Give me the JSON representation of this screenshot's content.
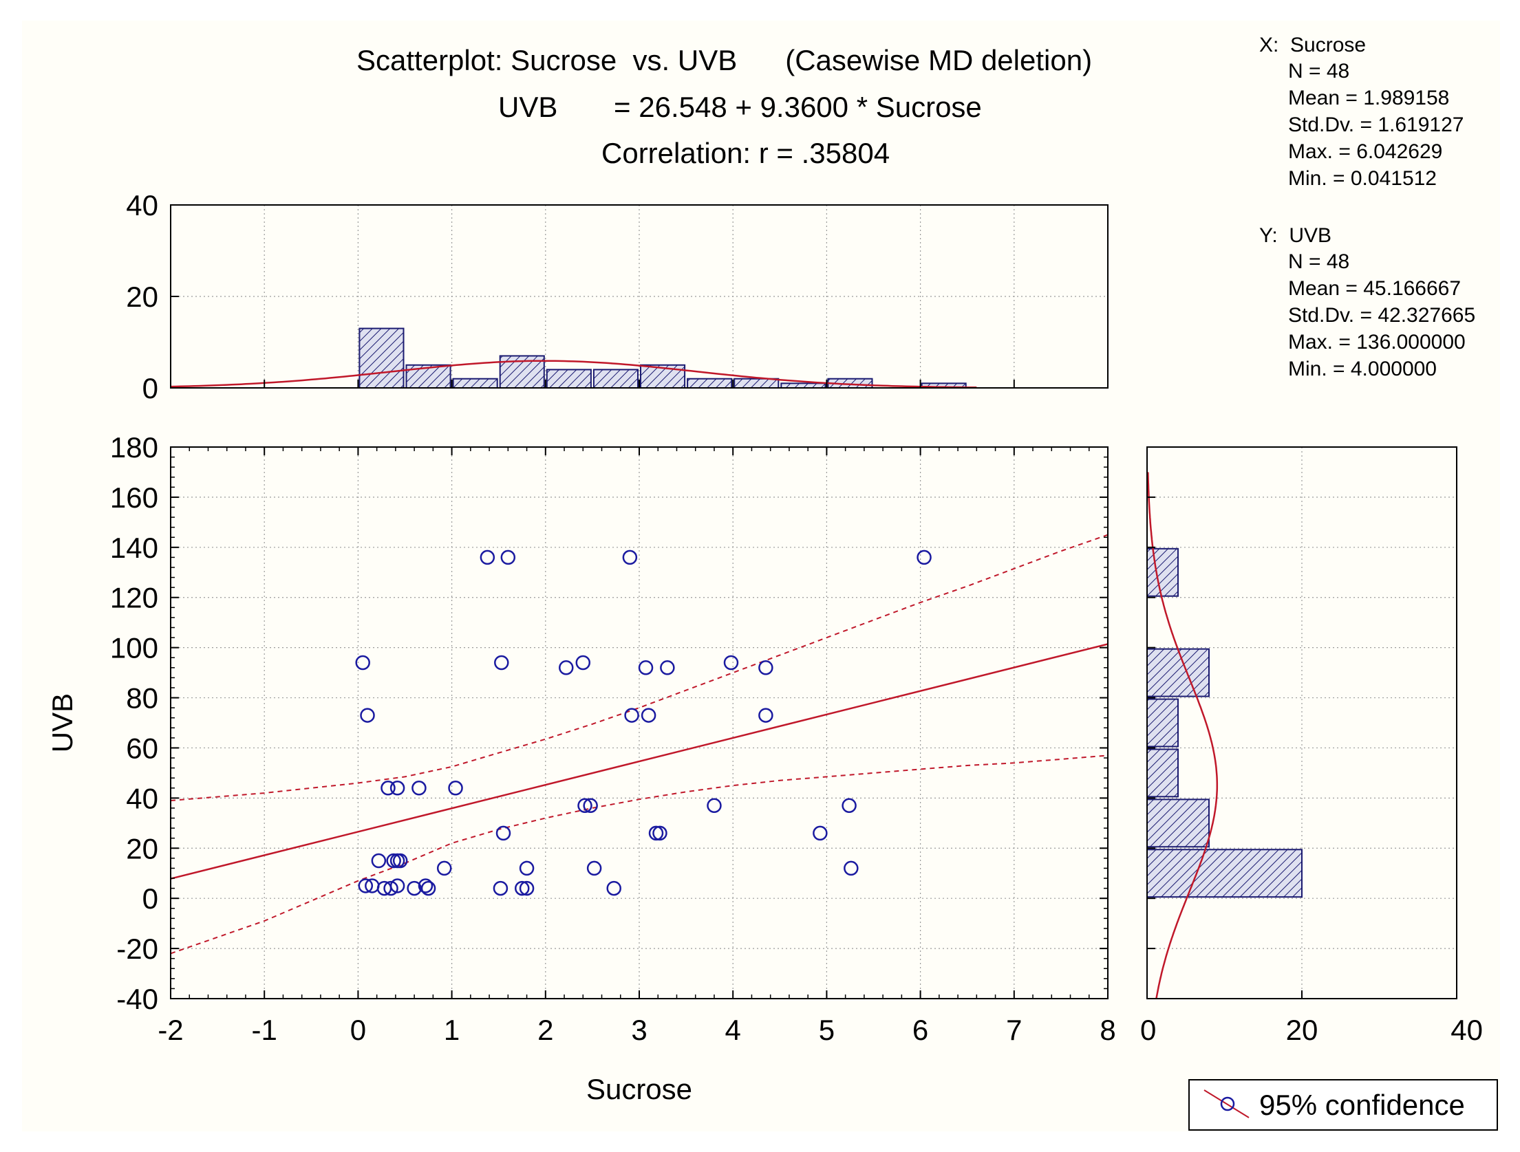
{
  "chart_data": {
    "type": "scatter",
    "title_lines": [
      "Scatterplot: Sucrose  vs. UVB      (Casewise MD deletion)",
      "UVB       = 26.548 + 9.3600 * Sucrose",
      "Correlation: r = .35804"
    ],
    "xlabel": "Sucrose",
    "ylabel": "UVB",
    "xlim": [
      -2,
      8
    ],
    "ylim": [
      -40,
      180
    ],
    "xticks": [
      "-2",
      "-1",
      "0",
      "1",
      "2",
      "3",
      "4",
      "5",
      "6",
      "7",
      "8"
    ],
    "yticks": [
      "-40",
      "-20",
      "0",
      "20",
      "40",
      "60",
      "80",
      "100",
      "120",
      "140",
      "160",
      "180"
    ],
    "regression": {
      "intercept": 26.548,
      "slope": 9.36
    },
    "confidence_band": {
      "x": [
        -2,
        -1,
        0,
        0.5,
        1,
        1.5,
        2,
        2.5,
        3,
        3.5,
        4,
        4.5,
        5,
        5.5,
        6,
        6.5,
        7,
        7.5,
        8
      ],
      "upper": [
        39,
        42,
        46,
        48.5,
        52.5,
        58,
        63.5,
        69.5,
        76,
        83,
        90,
        97,
        104,
        111,
        118,
        124.5,
        131.5,
        138.5,
        145
      ],
      "lower": [
        -22,
        -9,
        7,
        14,
        22,
        27.5,
        32,
        36,
        39.5,
        42.5,
        45,
        47,
        48.5,
        50,
        51.5,
        53,
        54,
        55.5,
        57
      ]
    },
    "points": [
      [
        1.38,
        136
      ],
      [
        1.6,
        136
      ],
      [
        2.9,
        136
      ],
      [
        6.04,
        136
      ],
      [
        0.05,
        94
      ],
      [
        1.53,
        94
      ],
      [
        2.4,
        94
      ],
      [
        3.98,
        94
      ],
      [
        2.22,
        92
      ],
      [
        3.07,
        92
      ],
      [
        3.3,
        92
      ],
      [
        4.35,
        92
      ],
      [
        0.1,
        73
      ],
      [
        2.92,
        73
      ],
      [
        3.1,
        73
      ],
      [
        4.35,
        73
      ],
      [
        0.32,
        44
      ],
      [
        0.42,
        44
      ],
      [
        0.65,
        44
      ],
      [
        1.04,
        44
      ],
      [
        2.42,
        37
      ],
      [
        2.48,
        37
      ],
      [
        3.8,
        37
      ],
      [
        5.24,
        37
      ],
      [
        1.55,
        26
      ],
      [
        3.18,
        26
      ],
      [
        3.22,
        26
      ],
      [
        4.93,
        26
      ],
      [
        0.22,
        15
      ],
      [
        0.38,
        15
      ],
      [
        0.42,
        15
      ],
      [
        0.45,
        15
      ],
      [
        0.92,
        12
      ],
      [
        1.8,
        12
      ],
      [
        2.52,
        12
      ],
      [
        5.26,
        12
      ],
      [
        0.08,
        5
      ],
      [
        0.15,
        5
      ],
      [
        0.42,
        5
      ],
      [
        0.72,
        5
      ],
      [
        0.28,
        4
      ],
      [
        0.35,
        4
      ],
      [
        0.6,
        4
      ],
      [
        0.75,
        4
      ],
      [
        1.52,
        4
      ],
      [
        1.75,
        4
      ],
      [
        1.8,
        4
      ],
      [
        2.73,
        4
      ]
    ],
    "top_histogram": {
      "axis_range": [
        0,
        40
      ],
      "ticks": [
        "0",
        "20",
        "40"
      ],
      "bins": [
        {
          "x0": 0,
          "x1": 0.5,
          "count": 13
        },
        {
          "x0": 0.5,
          "x1": 1,
          "count": 5
        },
        {
          "x0": 1,
          "x1": 1.5,
          "count": 2
        },
        {
          "x0": 1.5,
          "x1": 2,
          "count": 7
        },
        {
          "x0": 2,
          "x1": 2.5,
          "count": 4
        },
        {
          "x0": 2.5,
          "x1": 3,
          "count": 4
        },
        {
          "x0": 3,
          "x1": 3.5,
          "count": 5
        },
        {
          "x0": 3.5,
          "x1": 4,
          "count": 2
        },
        {
          "x0": 4,
          "x1": 4.5,
          "count": 2
        },
        {
          "x0": 4.5,
          "x1": 5,
          "count": 1
        },
        {
          "x0": 5,
          "x1": 5.5,
          "count": 2
        },
        {
          "x0": 6,
          "x1": 6.5,
          "count": 1
        }
      ],
      "curve_range": [
        -2,
        6.6
      ]
    },
    "right_histogram": {
      "axis_range": [
        0,
        40
      ],
      "ticks": [
        "0",
        "20",
        "40"
      ],
      "bins": [
        {
          "y0": 0,
          "y1": 20,
          "count": 20
        },
        {
          "y0": 20,
          "y1": 40,
          "count": 8
        },
        {
          "y0": 40,
          "y1": 60,
          "count": 4
        },
        {
          "y0": 60,
          "y1": 80,
          "count": 4
        },
        {
          "y0": 80,
          "y1": 100,
          "count": 8
        },
        {
          "y0": 120,
          "y1": 140,
          "count": 4
        }
      ],
      "curve_range": [
        -40,
        170
      ]
    },
    "stats": {
      "x_header": "X:  Sucrose",
      "x_lines": [
        "N = 48",
        "Mean = 1.989158",
        "Std.Dv. = 1.619127",
        "Max. = 6.042629",
        "Min. = 0.041512"
      ],
      "y_header": "Y:  UVB",
      "y_lines": [
        "N = 48",
        "Mean = 45.166667",
        "Std.Dv. = 42.327665",
        "Max. = 136.000000",
        "Min. = 4.000000"
      ]
    },
    "legend": {
      "label": "95% confidence",
      "position": "bottom-right"
    },
    "x_mean": 1.989158,
    "x_sd": 1.619127,
    "y_mean": 45.166667,
    "y_sd": 42.327665,
    "n": 48
  },
  "colors": {
    "background": "#fffef8",
    "point": "#1a1aa0",
    "fit_line": "#c0182a",
    "bar_fill": "#dfe1f0",
    "bar_hatch": "#1a1a70",
    "grid": "#9a9a9a",
    "axis": "#000000"
  }
}
